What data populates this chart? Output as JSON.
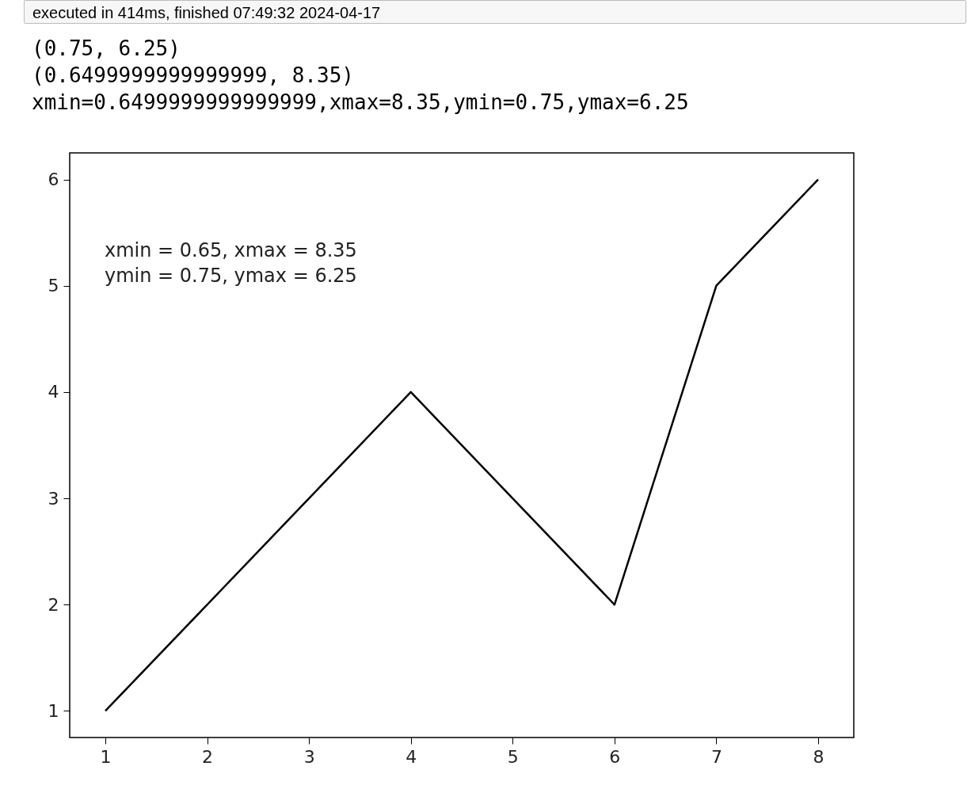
{
  "chart_data": {
    "type": "line",
    "x": [
      1,
      2,
      3,
      4,
      5,
      6,
      7,
      8
    ],
    "series": [
      {
        "color": "#000000",
        "values": [
          1,
          2,
          3,
          4,
          3,
          2,
          5,
          6
        ]
      }
    ],
    "xlim": [
      0.65,
      8.35
    ],
    "ylim": [
      0.75,
      6.25
    ],
    "xticks": [
      1,
      2,
      3,
      4,
      5,
      6,
      7,
      8
    ],
    "yticks": [
      1,
      2,
      3,
      4,
      5,
      6
    ],
    "grid": false,
    "marker": "none",
    "line_style": "solid",
    "annotations": [
      "executed in 414ms, finished 07:49:32 2024-04-17",
      "(0.75, 6.25)",
      "(0.6499999999999999, 8.35)",
      "xmin=0.6499999999999999,xmax=8.35,ymin=0.75,ymax=6.25",
      "xmin = 0.65, xmax = 8.35\nymin = 0.75, ymax = 6.25"
    ]
  }
}
